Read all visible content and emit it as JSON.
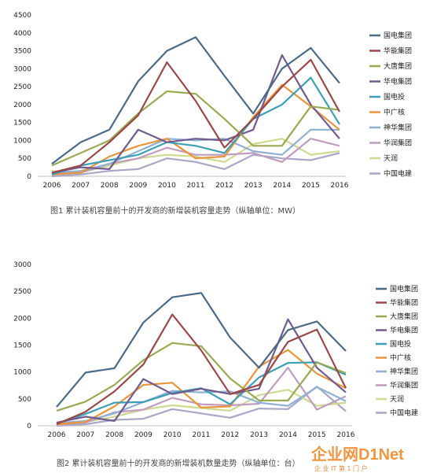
{
  "colors": {
    "国电集团": "#4a6a86",
    "华能集团": "#9a4848",
    "大唐集团": "#9aaa52",
    "华电集团": "#715a8e",
    "国电投": "#3d9fb5",
    "中广核": "#e8953b",
    "神华集团": "#8fb0d4",
    "华润集团": "#c09cbf",
    "天润": "#cfd98f",
    "中国电建": "#a7a7c8"
  },
  "chart_data": [
    {
      "type": "line",
      "caption": "图1  累计装机容量前十的开发商的新增装机容量走势（纵轴单位：MW）",
      "categories": [
        "2006",
        "2007",
        "2008",
        "2009",
        "2010",
        "2011",
        "2012",
        "2013",
        "2014",
        "2015",
        "2016"
      ],
      "ylim": [
        0,
        4500
      ],
      "yticks": [
        "0",
        "500",
        "1000",
        "1500",
        "2000",
        "2500",
        "3000",
        "3500",
        "4000",
        "4500"
      ],
      "series": [
        {
          "name": "国电集团",
          "values": [
            350,
            950,
            1300,
            2650,
            3500,
            3880,
            2800,
            1750,
            3000,
            3580,
            2600
          ]
        },
        {
          "name": "华能集团",
          "values": [
            100,
            300,
            950,
            1700,
            3180,
            2100,
            800,
            1600,
            2500,
            3250,
            1800
          ]
        },
        {
          "name": "大唐集团",
          "values": [
            300,
            650,
            1000,
            1750,
            2370,
            2300,
            1600,
            850,
            850,
            1950,
            1850
          ]
        },
        {
          "name": "华电集团",
          "values": [
            100,
            250,
            200,
            1300,
            950,
            1050,
            1000,
            1300,
            3380,
            2000,
            1050
          ]
        },
        {
          "name": "国电投",
          "values": [
            50,
            300,
            450,
            600,
            950,
            850,
            650,
            1600,
            2000,
            2750,
            1450
          ]
        },
        {
          "name": "中广核",
          "values": [
            50,
            100,
            550,
            850,
            1050,
            500,
            550,
            1650,
            2550,
            1950,
            1300
          ]
        },
        {
          "name": "神华集团",
          "values": [
            100,
            150,
            350,
            700,
            1050,
            1000,
            1050,
            700,
            600,
            1300,
            1300
          ]
        },
        {
          "name": "华润集团",
          "values": [
            50,
            100,
            350,
            500,
            800,
            600,
            600,
            650,
            400,
            1050,
            850
          ]
        },
        {
          "name": "天润",
          "values": [
            150,
            100,
            300,
            500,
            600,
            550,
            400,
            900,
            1050,
            600,
            700
          ]
        },
        {
          "name": "中国电建",
          "values": [
            0,
            50,
            150,
            200,
            500,
            400,
            200,
            600,
            500,
            450,
            650
          ]
        }
      ]
    },
    {
      "type": "line",
      "caption": "图2  累计装机容量前十的开发商的新增装机数量走势（纵轴单位：台）",
      "categories": [
        "2006",
        "2007",
        "2008",
        "2009",
        "2010",
        "2011",
        "2012",
        "2013",
        "2014",
        "2015",
        "2016"
      ],
      "ylim": [
        0,
        3000
      ],
      "yticks": [
        "0",
        "500",
        "1000",
        "1500",
        "2000",
        "2500",
        "3000"
      ],
      "series": [
        {
          "name": "国电集团",
          "values": [
            350,
            990,
            1070,
            1920,
            2390,
            2470,
            1640,
            1080,
            1780,
            1940,
            1390
          ]
        },
        {
          "name": "华能集团",
          "values": [
            30,
            260,
            640,
            1140,
            2070,
            1400,
            590,
            760,
            1560,
            1790,
            700
          ]
        },
        {
          "name": "大唐集团",
          "values": [
            280,
            450,
            760,
            1220,
            1540,
            1480,
            880,
            470,
            470,
            1180,
            980
          ]
        },
        {
          "name": "华电集团",
          "values": [
            60,
            170,
            90,
            870,
            590,
            690,
            590,
            690,
            1980,
            1080,
            620
          ]
        },
        {
          "name": "国电投",
          "values": [
            40,
            220,
            430,
            440,
            610,
            700,
            400,
            900,
            1170,
            1180,
            950
          ]
        },
        {
          "name": "中广核",
          "values": [
            30,
            70,
            360,
            760,
            800,
            340,
            360,
            1100,
            1410,
            970,
            700
          ]
        },
        {
          "name": "神华集团",
          "values": [
            50,
            90,
            230,
            440,
            650,
            620,
            640,
            430,
            370,
            720,
            460
          ]
        },
        {
          "name": "华润集团",
          "values": [
            20,
            60,
            250,
            300,
            520,
            400,
            380,
            410,
            1080,
            300,
            550
          ]
        },
        {
          "name": "天润",
          "values": [
            10,
            70,
            170,
            300,
            380,
            330,
            280,
            570,
            670,
            370,
            430
          ]
        },
        {
          "name": "中国电建",
          "values": [
            0,
            30,
            110,
            130,
            310,
            230,
            150,
            320,
            310,
            730,
            270
          ]
        }
      ]
    }
  ],
  "watermark": {
    "brand": "企业网D1Net",
    "sub": "企 业 IT 第 1 门 户"
  }
}
